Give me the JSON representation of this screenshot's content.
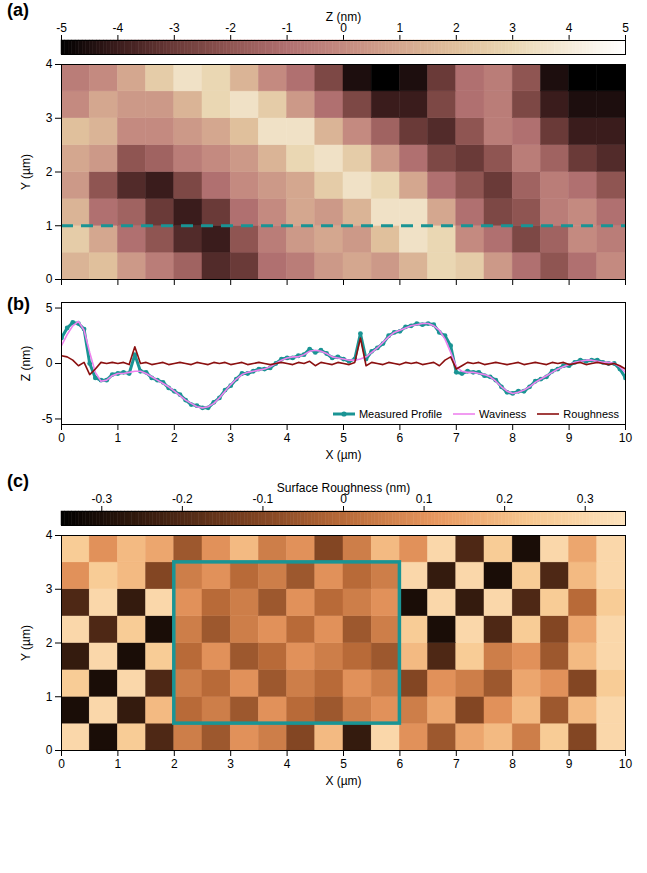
{
  "chart_data": [
    {
      "panel": "(a)",
      "type": "heatmap",
      "colorbar_label": "Z (nm)",
      "colorbar_lim": [
        -5,
        5
      ],
      "colorbar_ticks": [
        -5,
        -4,
        -3,
        -2,
        -1,
        0,
        1,
        2,
        3,
        4,
        5
      ],
      "ylabel": "Y (µm)",
      "xlim": [
        0,
        10
      ],
      "ylim": [
        0,
        4
      ],
      "xticks": [
        0,
        1,
        2,
        3,
        4,
        5,
        6,
        7,
        8,
        9,
        10
      ],
      "yticks": [
        0,
        1,
        2,
        3,
        4
      ],
      "tick_labels": "y",
      "x": [
        0.25,
        0.75,
        1.25,
        1.75,
        2.25,
        2.75,
        3.25,
        3.75,
        4.25,
        4.75,
        5.25,
        5.75,
        6.25,
        6.75,
        7.25,
        7.75,
        8.25,
        8.75,
        9.25,
        9.75
      ],
      "y": [
        0.25,
        0.75,
        1.25,
        1.75,
        2.25,
        2.75,
        3.25,
        3.75
      ],
      "z": [
        [
          1.5,
          2,
          0.5,
          -0.5,
          -1.5,
          -3.5,
          -3,
          -1,
          -0.5,
          0.5,
          1,
          0.5,
          1.5,
          3,
          2.5,
          0.5,
          -1,
          -2,
          -1,
          0
        ],
        [
          2.5,
          1,
          -1,
          -2,
          -3.5,
          -4,
          -2,
          -0.5,
          0.5,
          1,
          0.5,
          2,
          3.5,
          3,
          0,
          -1,
          -2.5,
          -1.5,
          0,
          -0.5
        ],
        [
          1.5,
          -1,
          -1.5,
          -3,
          -4,
          -3,
          -1,
          0,
          1,
          0.5,
          1.5,
          3.5,
          3.5,
          1,
          -1,
          -2.5,
          -2,
          -0.5,
          0,
          -1
        ],
        [
          0.5,
          -2,
          -3.5,
          -4,
          -2.5,
          -1,
          0,
          0.5,
          1,
          2.5,
          3.5,
          3,
          1,
          -1,
          -2,
          -3,
          -1.5,
          -0.5,
          -1,
          -2
        ],
        [
          1,
          0.5,
          -2,
          -1.5,
          -0.5,
          0,
          0.5,
          1.5,
          3,
          3.5,
          2.5,
          0.5,
          -1,
          -2.5,
          -3,
          -2,
          -0.5,
          -1.5,
          -3,
          -3.5
        ],
        [
          2,
          1.5,
          0,
          0,
          0.5,
          1,
          2,
          3.5,
          3.5,
          1.5,
          0,
          -1.5,
          -3,
          -3.5,
          -2,
          -0.5,
          -1,
          -3,
          -4,
          -4
        ],
        [
          0,
          1,
          0.5,
          0.5,
          1.5,
          3,
          3.5,
          2.5,
          0.5,
          -1,
          -2.5,
          -4,
          -4,
          -2.5,
          -1,
          -0.5,
          -2.5,
          -4,
          -4.5,
          -4.5
        ],
        [
          -0.5,
          0,
          1,
          2.5,
          3.5,
          3,
          1.5,
          0,
          -1,
          -2.5,
          -4.5,
          -5,
          -4.5,
          -3,
          -1,
          -0.5,
          -2,
          -4.5,
          -5,
          -5
        ]
      ],
      "profile_line": {
        "y": 1,
        "color": "#1a9494",
        "line_style": "dashed"
      }
    },
    {
      "panel": "(b)",
      "type": "line",
      "xlabel": "X (µm)",
      "ylabel": "Z (nm)",
      "xlim": [
        0,
        10
      ],
      "ylim": [
        -5.5,
        5.5
      ],
      "xticks": [
        0,
        1,
        2,
        3,
        4,
        5,
        6,
        7,
        8,
        9,
        10
      ],
      "yticks": [
        -5,
        0,
        5
      ],
      "legend": "lower right",
      "x": [
        0,
        0.1,
        0.2,
        0.3,
        0.4,
        0.5,
        0.6,
        0.7,
        0.8,
        0.9,
        1,
        1.1,
        1.2,
        1.3,
        1.4,
        1.5,
        1.6,
        1.7,
        1.8,
        1.9,
        2,
        2.1,
        2.2,
        2.3,
        2.4,
        2.5,
        2.6,
        2.7,
        2.8,
        2.9,
        3,
        3.1,
        3.2,
        3.3,
        3.4,
        3.5,
        3.6,
        3.7,
        3.8,
        3.9,
        4,
        4.1,
        4.2,
        4.3,
        4.4,
        4.5,
        4.6,
        4.7,
        4.8,
        4.9,
        5,
        5.1,
        5.2,
        5.3,
        5.4,
        5.5,
        5.6,
        5.7,
        5.8,
        5.9,
        6,
        6.1,
        6.2,
        6.3,
        6.4,
        6.5,
        6.6,
        6.7,
        6.8,
        6.9,
        7,
        7.1,
        7.2,
        7.3,
        7.4,
        7.5,
        7.6,
        7.7,
        7.8,
        7.9,
        8,
        8.1,
        8.2,
        8.3,
        8.4,
        8.5,
        8.6,
        8.7,
        8.8,
        8.9,
        9,
        9.1,
        9.2,
        9.3,
        9.4,
        9.5,
        9.6,
        9.7,
        9.8,
        9.9,
        10
      ],
      "series": [
        {
          "name": "Measured Profile",
          "color": "#1a9494",
          "marker": "circle",
          "line_style": "solid",
          "values": [
            2.3,
            3.2,
            3.7,
            3.6,
            3.1,
            0.0,
            -1.3,
            -1.5,
            -1.5,
            -1.0,
            -0.9,
            -0.8,
            -0.9,
            0.8,
            -0.7,
            -0.8,
            -1.3,
            -1.5,
            -1.7,
            -2.2,
            -2.5,
            -2.8,
            -3.3,
            -3.7,
            -3.8,
            -4.0,
            -4.0,
            -3.5,
            -3.1,
            -2.4,
            -2.0,
            -1.4,
            -0.9,
            -0.9,
            -0.7,
            -0.5,
            -0.5,
            -0.4,
            0.0,
            0.4,
            0.5,
            0.5,
            0.7,
            0.8,
            1.3,
            1.0,
            1.2,
            0.9,
            0.5,
            0.6,
            0.4,
            0.2,
            0.4,
            2.7,
            0.4,
            1.1,
            1.4,
            1.8,
            2.5,
            2.8,
            2.9,
            3.3,
            3.4,
            3.6,
            3.5,
            3.6,
            3.5,
            2.8,
            2.5,
            1.6,
            -0.8,
            -0.9,
            -0.7,
            -0.8,
            -0.8,
            -1.1,
            -1.2,
            -1.5,
            -2.1,
            -2.6,
            -2.7,
            -2.5,
            -2.5,
            -2.1,
            -1.6,
            -1.4,
            -1.2,
            -0.7,
            -0.5,
            -0.2,
            -0.2,
            0.1,
            0.3,
            0.2,
            0.3,
            0.3,
            0.1,
            0.0,
            0.0,
            -0.5,
            -1.3
          ]
        },
        {
          "name": "Waviness",
          "color": "#ee82ee",
          "line_style": "solid",
          "values": [
            1.6,
            2.6,
            3.4,
            3.8,
            3.0,
            1.0,
            -0.8,
            -1.6,
            -1.5,
            -1.1,
            -0.9,
            -0.9,
            -0.8,
            -0.7,
            -0.7,
            -0.9,
            -1.2,
            -1.5,
            -1.8,
            -2.1,
            -2.5,
            -2.9,
            -3.3,
            -3.6,
            -3.9,
            -4.0,
            -3.9,
            -3.6,
            -3.1,
            -2.5,
            -1.9,
            -1.4,
            -1.0,
            -0.8,
            -0.7,
            -0.6,
            -0.5,
            -0.3,
            0.0,
            0.3,
            0.5,
            0.6,
            0.6,
            0.8,
            1.1,
            1.2,
            1.1,
            0.9,
            0.6,
            0.5,
            0.4,
            0.3,
            0.3,
            0.4,
            0.6,
            1.0,
            1.4,
            1.9,
            2.4,
            2.8,
            3.0,
            3.2,
            3.4,
            3.5,
            3.6,
            3.6,
            3.4,
            3.0,
            2.2,
            1.0,
            -0.3,
            -0.7,
            -0.8,
            -0.8,
            -0.9,
            -1.0,
            -1.2,
            -1.6,
            -2.1,
            -2.5,
            -2.7,
            -2.6,
            -2.4,
            -2.1,
            -1.7,
            -1.4,
            -1.1,
            -0.8,
            -0.5,
            -0.3,
            -0.1,
            0.1,
            0.2,
            0.3,
            0.3,
            0.2,
            0.1,
            0.1,
            0.0,
            -0.3,
            -0.8
          ]
        },
        {
          "name": "Roughness",
          "color": "#8b1010",
          "line_style": "solid",
          "values": [
            0.7,
            0.6,
            0.3,
            -0.2,
            0.1,
            -1.0,
            -0.5,
            0.1,
            0.0,
            0.1,
            0.0,
            0.1,
            -0.1,
            1.5,
            0.0,
            0.1,
            -0.1,
            0.0,
            0.1,
            -0.1,
            0.0,
            0.1,
            0.0,
            -0.1,
            0.1,
            0.0,
            -0.1,
            0.1,
            0.0,
            0.1,
            -0.1,
            0.0,
            0.1,
            -0.1,
            0.0,
            0.1,
            0.0,
            -0.1,
            0.0,
            0.1,
            0.0,
            -0.1,
            0.1,
            0.0,
            0.2,
            -0.2,
            0.1,
            0.0,
            -0.1,
            0.1,
            0.0,
            -0.1,
            0.1,
            2.3,
            -0.2,
            0.1,
            0.0,
            -0.1,
            0.1,
            0.0,
            -0.1,
            0.1,
            0.0,
            0.1,
            -0.1,
            0.0,
            0.1,
            -0.2,
            0.3,
            0.6,
            -0.5,
            -0.2,
            0.1,
            0.0,
            0.1,
            -0.1,
            0.0,
            0.1,
            0.0,
            -0.1,
            0.0,
            0.1,
            -0.1,
            0.0,
            0.1,
            0.0,
            -0.1,
            0.1,
            0.0,
            0.1,
            -0.1,
            0.0,
            0.1,
            -0.1,
            0.0,
            0.1,
            0.0,
            -0.1,
            0.0,
            -0.2,
            -0.5
          ]
        }
      ]
    },
    {
      "panel": "(c)",
      "type": "heatmap",
      "colorbar_label": "Surface Roughness (nm)",
      "colorbar_lim": [
        -0.35,
        0.35
      ],
      "colorbar_ticks": [
        -0.3,
        -0.2,
        -0.1,
        0,
        0.1,
        0.2,
        0.3
      ],
      "xlabel": "X (µm)",
      "ylabel": "Y (µm)",
      "xlim": [
        0,
        10
      ],
      "ylim": [
        0,
        4
      ],
      "xticks": [
        0,
        1,
        2,
        3,
        4,
        5,
        6,
        7,
        8,
        9,
        10
      ],
      "yticks": [
        0,
        1,
        2,
        3,
        4
      ],
      "x": [
        0.25,
        0.75,
        1.25,
        1.75,
        2.25,
        2.75,
        3.25,
        3.75,
        4.25,
        4.75,
        5.25,
        5.75,
        6.25,
        6.75,
        7.25,
        7.75,
        8.25,
        8.75,
        9.25,
        9.75
      ],
      "y": [
        0.25,
        0.75,
        1.25,
        1.75,
        2.25,
        2.75,
        3.25,
        3.75
      ],
      "z": [
        [
          0.3,
          -0.3,
          0.25,
          -0.2,
          0.05,
          -0.05,
          0.1,
          0.05,
          -0.1,
          0.2,
          -0.25,
          0.3,
          0.1,
          -0.05,
          0.15,
          0.2,
          0.05,
          0.25,
          -0.1,
          0.3
        ],
        [
          -0.3,
          0.3,
          -0.25,
          0.2,
          0,
          0.05,
          -0.05,
          0.1,
          0,
          -0.05,
          0.05,
          0.1,
          0.05,
          0.15,
          -0.1,
          0.1,
          0.2,
          -0.05,
          0.2,
          0.3
        ],
        [
          0.25,
          -0.3,
          0.3,
          -0.2,
          0.05,
          0,
          0.1,
          -0.05,
          0.05,
          0,
          0.1,
          0.05,
          -0.1,
          0.1,
          0.05,
          -0.05,
          0.15,
          0.1,
          -0.1,
          0.25
        ],
        [
          -0.25,
          0.3,
          -0.3,
          0.25,
          0,
          0.1,
          -0.05,
          0,
          0.1,
          0.05,
          0,
          -0.05,
          0.2,
          -0.2,
          0.25,
          0.05,
          0.1,
          -0.05,
          0.2,
          0.3
        ],
        [
          0.3,
          -0.2,
          0.25,
          -0.3,
          0.05,
          -0.05,
          0.05,
          0.1,
          0,
          0.1,
          -0.05,
          0.05,
          0.25,
          -0.3,
          0.3,
          -0.2,
          0.25,
          -0.1,
          0.15,
          0.3
        ],
        [
          -0.2,
          0.3,
          -0.25,
          0.3,
          0.1,
          0,
          0.05,
          -0.05,
          0.1,
          0,
          0.05,
          0.1,
          -0.3,
          0.3,
          -0.25,
          0.3,
          -0.2,
          0.25,
          0,
          0.25
        ],
        [
          0.1,
          0.25,
          0.2,
          -0.1,
          0.05,
          0.1,
          0,
          0.05,
          -0.05,
          0.1,
          0,
          0.05,
          0.3,
          -0.25,
          0.3,
          -0.3,
          0.25,
          -0.2,
          0.2,
          0.3
        ],
        [
          0.25,
          0.1,
          0.2,
          0.15,
          -0.05,
          0.1,
          0.2,
          0.05,
          0.1,
          -0.1,
          0.05,
          0.2,
          0.1,
          0.3,
          -0.2,
          0.25,
          -0.3,
          0.3,
          0.15,
          0.3
        ]
      ],
      "box": {
        "x": [
          2,
          6
        ],
        "y": [
          0.5,
          3.5
        ],
        "color": "#1a9494"
      }
    }
  ]
}
